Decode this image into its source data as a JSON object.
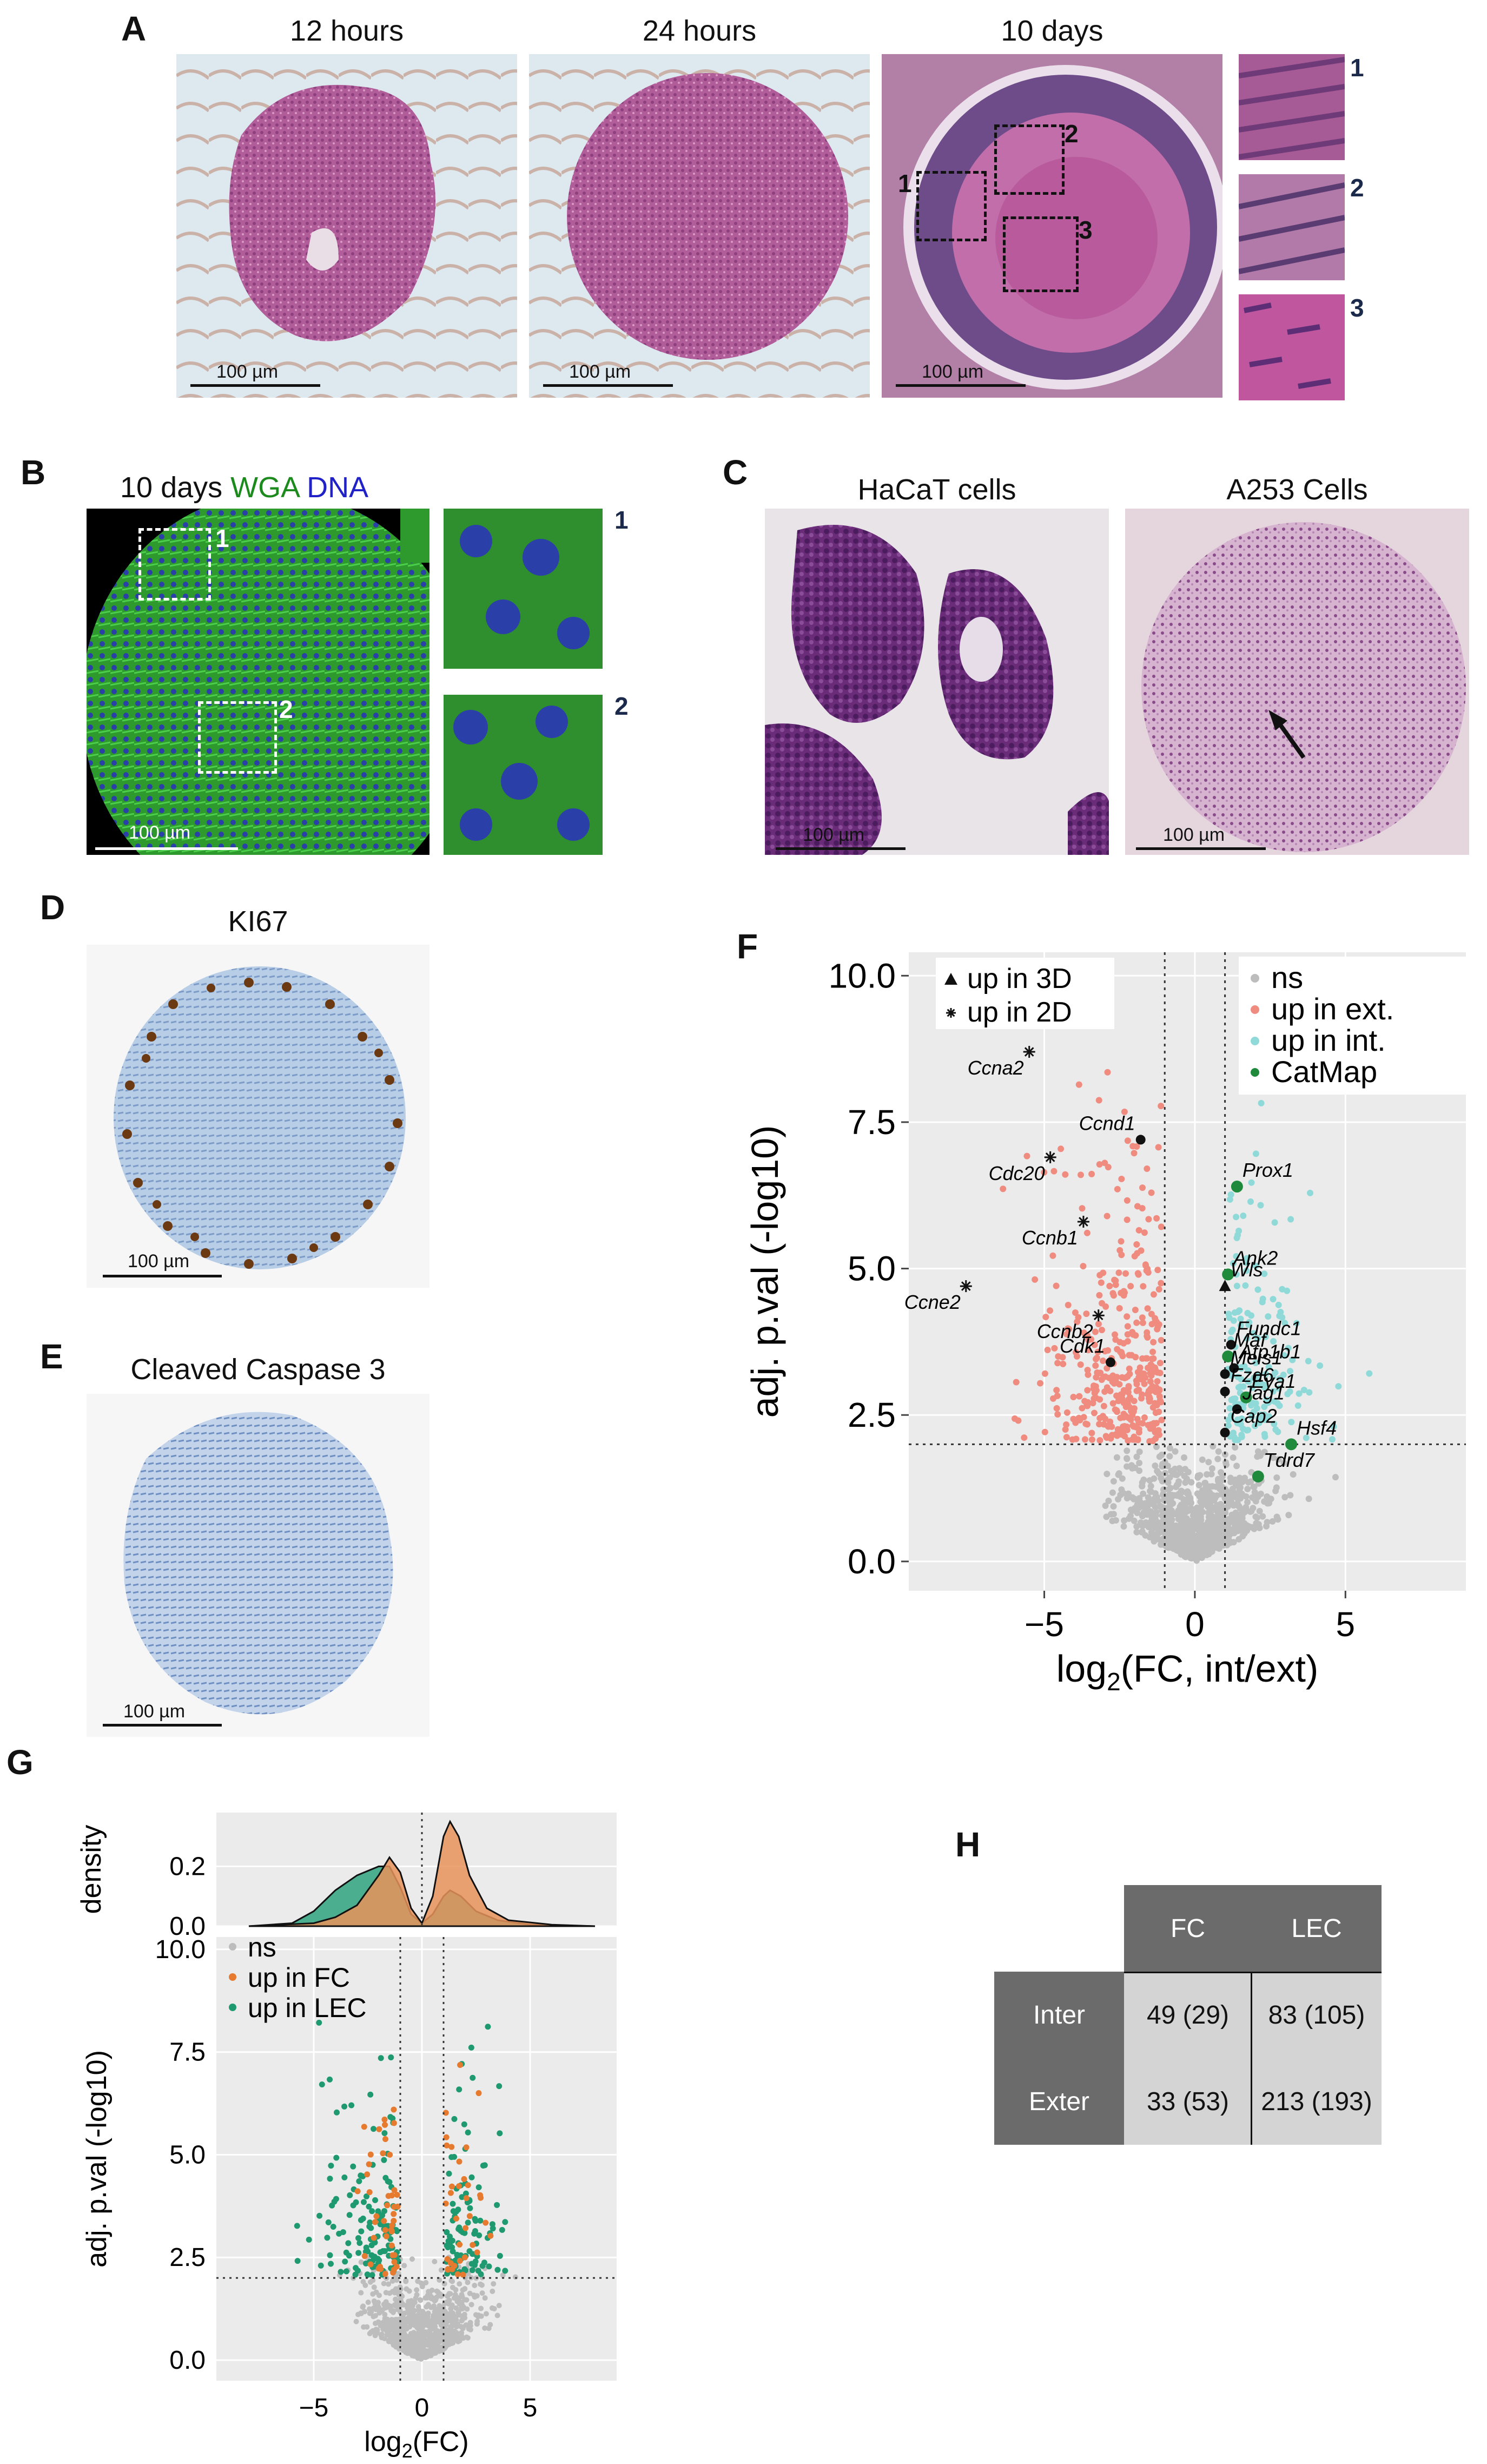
{
  "panelA": {
    "letter": "A",
    "captions": [
      "12 hours",
      "24 hours",
      "10 days"
    ],
    "scale": "100 µm",
    "insets": [
      "1",
      "2",
      "3"
    ]
  },
  "panelB": {
    "letter": "B",
    "title_prefix": "10 days ",
    "title_wga": "WGA",
    "title_dna": " DNA",
    "scale": "100 µm",
    "insets": [
      "1",
      "2"
    ]
  },
  "panelC": {
    "letter": "C",
    "captions": [
      "HaCaT cells",
      "A253 Cells"
    ],
    "scale": "100 µm"
  },
  "panelD": {
    "letter": "D",
    "caption": "KI67",
    "scale": "100 µm"
  },
  "panelE": {
    "letter": "E",
    "caption": "Cleaved Caspase 3",
    "scale": "100 µm"
  },
  "panelF": {
    "letter": "F",
    "chart_data": {
      "type": "scatter",
      "xlabel": "log2(FC, int/ext)",
      "ylabel": "adj. p.val (-log10)",
      "xlim": [
        -9.5,
        9
      ],
      "ylim": [
        -0.5,
        10.4
      ],
      "xticks": [
        -5,
        0,
        5
      ],
      "yticks": [
        0.0,
        2.5,
        5.0,
        7.5,
        10.0
      ],
      "ytick_labels": [
        "0.0",
        "2.5",
        "5.0",
        "7.5",
        "10.0"
      ],
      "vlines": [
        -1,
        1
      ],
      "hline": 2,
      "legend_shape": [
        "up in 3D",
        "up in 2D"
      ],
      "legend_color": [
        "ns",
        "up in ext.",
        "up in int.",
        "CatMap"
      ],
      "colors": {
        "ns": "#bdbdbd",
        "ext": "#f08b80",
        "int": "#8fdad8",
        "catmap": "#1f8a3b",
        "bg": "#ebebeb"
      },
      "labeled_points": [
        {
          "label": "Ccna2",
          "x": -5.5,
          "y": 8.7,
          "kind": "star"
        },
        {
          "label": "Ccnd1",
          "x": -1.8,
          "y": 7.2,
          "kind": "dot"
        },
        {
          "label": "Cdc20",
          "x": -4.8,
          "y": 6.9,
          "kind": "star"
        },
        {
          "label": "Prox1",
          "x": 1.4,
          "y": 6.4,
          "kind": "cat"
        },
        {
          "label": "Ccnb1",
          "x": -3.7,
          "y": 5.8,
          "kind": "star"
        },
        {
          "label": "Ank2",
          "x": 1.1,
          "y": 4.9,
          "kind": "cat"
        },
        {
          "label": "Ccne2",
          "x": -7.6,
          "y": 4.7,
          "kind": "star"
        },
        {
          "label": "Wls",
          "x": 1.0,
          "y": 4.7,
          "kind": "tri"
        },
        {
          "label": "Ccnb2",
          "x": -3.2,
          "y": 4.2,
          "kind": "star"
        },
        {
          "label": "Fundc1",
          "x": 1.2,
          "y": 3.7,
          "kind": "dot"
        },
        {
          "label": "Maf",
          "x": 1.1,
          "y": 3.5,
          "kind": "cat"
        },
        {
          "label": "Cdk1",
          "x": -2.8,
          "y": 3.4,
          "kind": "dot"
        },
        {
          "label": "Atp1b1",
          "x": 1.3,
          "y": 3.3,
          "kind": "dot"
        },
        {
          "label": "Meis1",
          "x": 1.0,
          "y": 3.2,
          "kind": "dot"
        },
        {
          "label": "Eya1",
          "x": 1.7,
          "y": 2.8,
          "kind": "cat"
        },
        {
          "label": "Fzd6",
          "x": 1.0,
          "y": 2.9,
          "kind": "dot"
        },
        {
          "label": "Jag1",
          "x": 1.4,
          "y": 2.6,
          "kind": "dot"
        },
        {
          "label": "Cap2",
          "x": 1.0,
          "y": 2.2,
          "kind": "dot"
        },
        {
          "label": "Hsf4",
          "x": 3.2,
          "y": 2.0,
          "kind": "cat"
        },
        {
          "label": "Tdrd7",
          "x": 2.1,
          "y": 1.45,
          "kind": "cat"
        }
      ]
    }
  },
  "panelG": {
    "letter": "G",
    "chart_data": [
      {
        "type": "area",
        "ylabel": "density",
        "yticks": [
          0.0,
          0.2
        ],
        "ytick_labels": [
          "0.0",
          "0.2"
        ],
        "ylim": [
          0,
          0.38
        ],
        "xlim": [
          -9.5,
          9
        ],
        "series": [
          {
            "name": "up in LEC",
            "color": "#2fa37f",
            "x": [
              -8,
              -6,
              -5,
              -4,
              -3,
              -2,
              -1.5,
              -1,
              -0.5,
              0,
              0.5,
              1,
              1.3,
              1.8,
              2.5,
              3.5,
              5,
              8
            ],
            "values": [
              0.0,
              0.01,
              0.05,
              0.12,
              0.17,
              0.2,
              0.2,
              0.13,
              0.04,
              0.01,
              0.04,
              0.1,
              0.12,
              0.1,
              0.05,
              0.02,
              0.005,
              0.0
            ]
          },
          {
            "name": "up in FC",
            "color": "#e8935a",
            "x": [
              -8,
              -5,
              -4,
              -3,
              -2,
              -1.5,
              -1,
              -0.5,
              0,
              0.5,
              1,
              1.3,
              1.7,
              2.2,
              3,
              4,
              6,
              8
            ],
            "values": [
              0.0,
              0.01,
              0.03,
              0.07,
              0.17,
              0.23,
              0.18,
              0.06,
              0.01,
              0.1,
              0.3,
              0.35,
              0.3,
              0.17,
              0.06,
              0.02,
              0.005,
              0.0
            ]
          }
        ]
      },
      {
        "type": "scatter",
        "xlabel": "log2(FC)",
        "ylabel": "adj. p.val (-log10)",
        "xlim": [
          -9.5,
          9
        ],
        "ylim": [
          -0.5,
          10.3
        ],
        "xticks": [
          -5,
          0,
          5
        ],
        "yticks": [
          0.0,
          2.5,
          5.0,
          7.5,
          10.0
        ],
        "ytick_labels": [
          "0.0",
          "2.5",
          "5.0",
          "7.5",
          "10.0"
        ],
        "vlines": [
          -1,
          1
        ],
        "hline": 2,
        "legend": [
          "ns",
          "up in FC",
          "up in LEC"
        ],
        "colors": {
          "ns": "#bdbdbd",
          "fc": "#e67a2e",
          "lec": "#1f9a70",
          "bg": "#ebebeb"
        }
      }
    ]
  },
  "panelH": {
    "letter": "H",
    "columns": [
      "FC",
      "LEC"
    ],
    "rows": [
      {
        "label": "Inter",
        "values": [
          "49 (29)",
          "83 (105)"
        ]
      },
      {
        "label": "Exter",
        "values": [
          "33 (53)",
          "213 (193)"
        ]
      }
    ],
    "colors": {
      "header": "#6b6b6b",
      "cell": "#d4d4d4",
      "header_text": "#ffffff"
    }
  }
}
